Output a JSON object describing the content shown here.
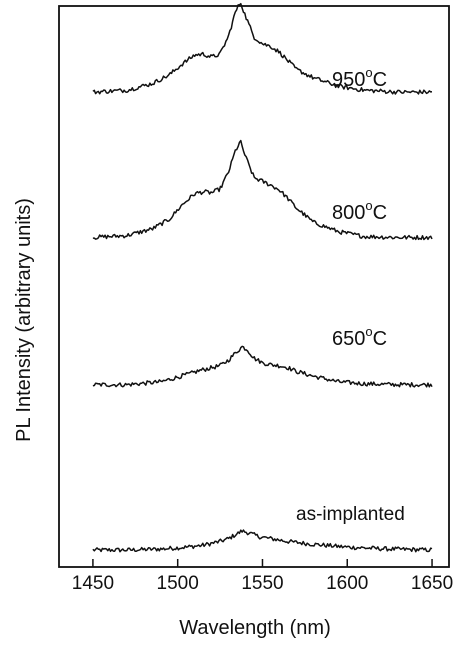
{
  "chart_data": {
    "type": "line",
    "title": "",
    "xlabel": "Wavelength (nm)",
    "ylabel": "PL Intensity (arbitrary units)",
    "xlim": [
      1430,
      1660
    ],
    "xticks": [
      1450,
      1500,
      1550,
      1600,
      1650
    ],
    "y_ticks_shown": false,
    "grid": false,
    "legend": "none",
    "note": "spectra vertically offset; y in arbitrary units (0 = lowest baseline)",
    "series": [
      {
        "name": "as-implanted",
        "x": [
          1450,
          1470,
          1490,
          1505,
          1515,
          1525,
          1530,
          1535,
          1538,
          1542,
          1548,
          1555,
          1565,
          1580,
          1600,
          1625,
          1650
        ],
        "y": [
          0.0,
          0.0,
          0.01,
          0.03,
          0.05,
          0.09,
          0.12,
          0.17,
          0.2,
          0.18,
          0.14,
          0.12,
          0.09,
          0.06,
          0.03,
          0.01,
          0.0
        ]
      },
      {
        "name": "650°C",
        "x": [
          1450,
          1470,
          1490,
          1500,
          1508,
          1513,
          1518,
          1525,
          1530,
          1535,
          1538,
          1541,
          1545,
          1550,
          1555,
          1560,
          1565,
          1570,
          1580,
          1595,
          1610,
          1630,
          1650
        ],
        "y": [
          1.74,
          1.74,
          1.77,
          1.82,
          1.86,
          1.89,
          1.91,
          1.94,
          2.0,
          2.09,
          2.14,
          2.11,
          2.02,
          1.97,
          1.95,
          1.94,
          1.92,
          1.88,
          1.83,
          1.77,
          1.75,
          1.74,
          1.74
        ]
      },
      {
        "name": "800°C",
        "x": [
          1450,
          1470,
          1485,
          1495,
          1503,
          1510,
          1515,
          1520,
          1525,
          1530,
          1534,
          1537,
          1540,
          1545,
          1550,
          1555,
          1560,
          1565,
          1570,
          1580,
          1595,
          1610,
          1630,
          1650
        ],
        "y": [
          3.29,
          3.31,
          3.38,
          3.48,
          3.64,
          3.75,
          3.77,
          3.76,
          3.8,
          3.98,
          4.2,
          4.3,
          4.14,
          3.92,
          3.88,
          3.84,
          3.79,
          3.7,
          3.6,
          3.45,
          3.35,
          3.3,
          3.29,
          3.29
        ]
      },
      {
        "name": "950°C",
        "x": [
          1450,
          1470,
          1485,
          1495,
          1503,
          1510,
          1515,
          1520,
          1525,
          1530,
          1534,
          1537,
          1540,
          1545,
          1550,
          1555,
          1560,
          1565,
          1570,
          1580,
          1595,
          1610,
          1630,
          1650
        ],
        "y": [
          4.82,
          4.84,
          4.91,
          5.0,
          5.12,
          5.21,
          5.22,
          5.19,
          5.22,
          5.41,
          5.66,
          5.77,
          5.62,
          5.4,
          5.33,
          5.3,
          5.24,
          5.15,
          5.06,
          4.97,
          4.88,
          4.84,
          4.82,
          4.82
        ]
      }
    ]
  }
}
